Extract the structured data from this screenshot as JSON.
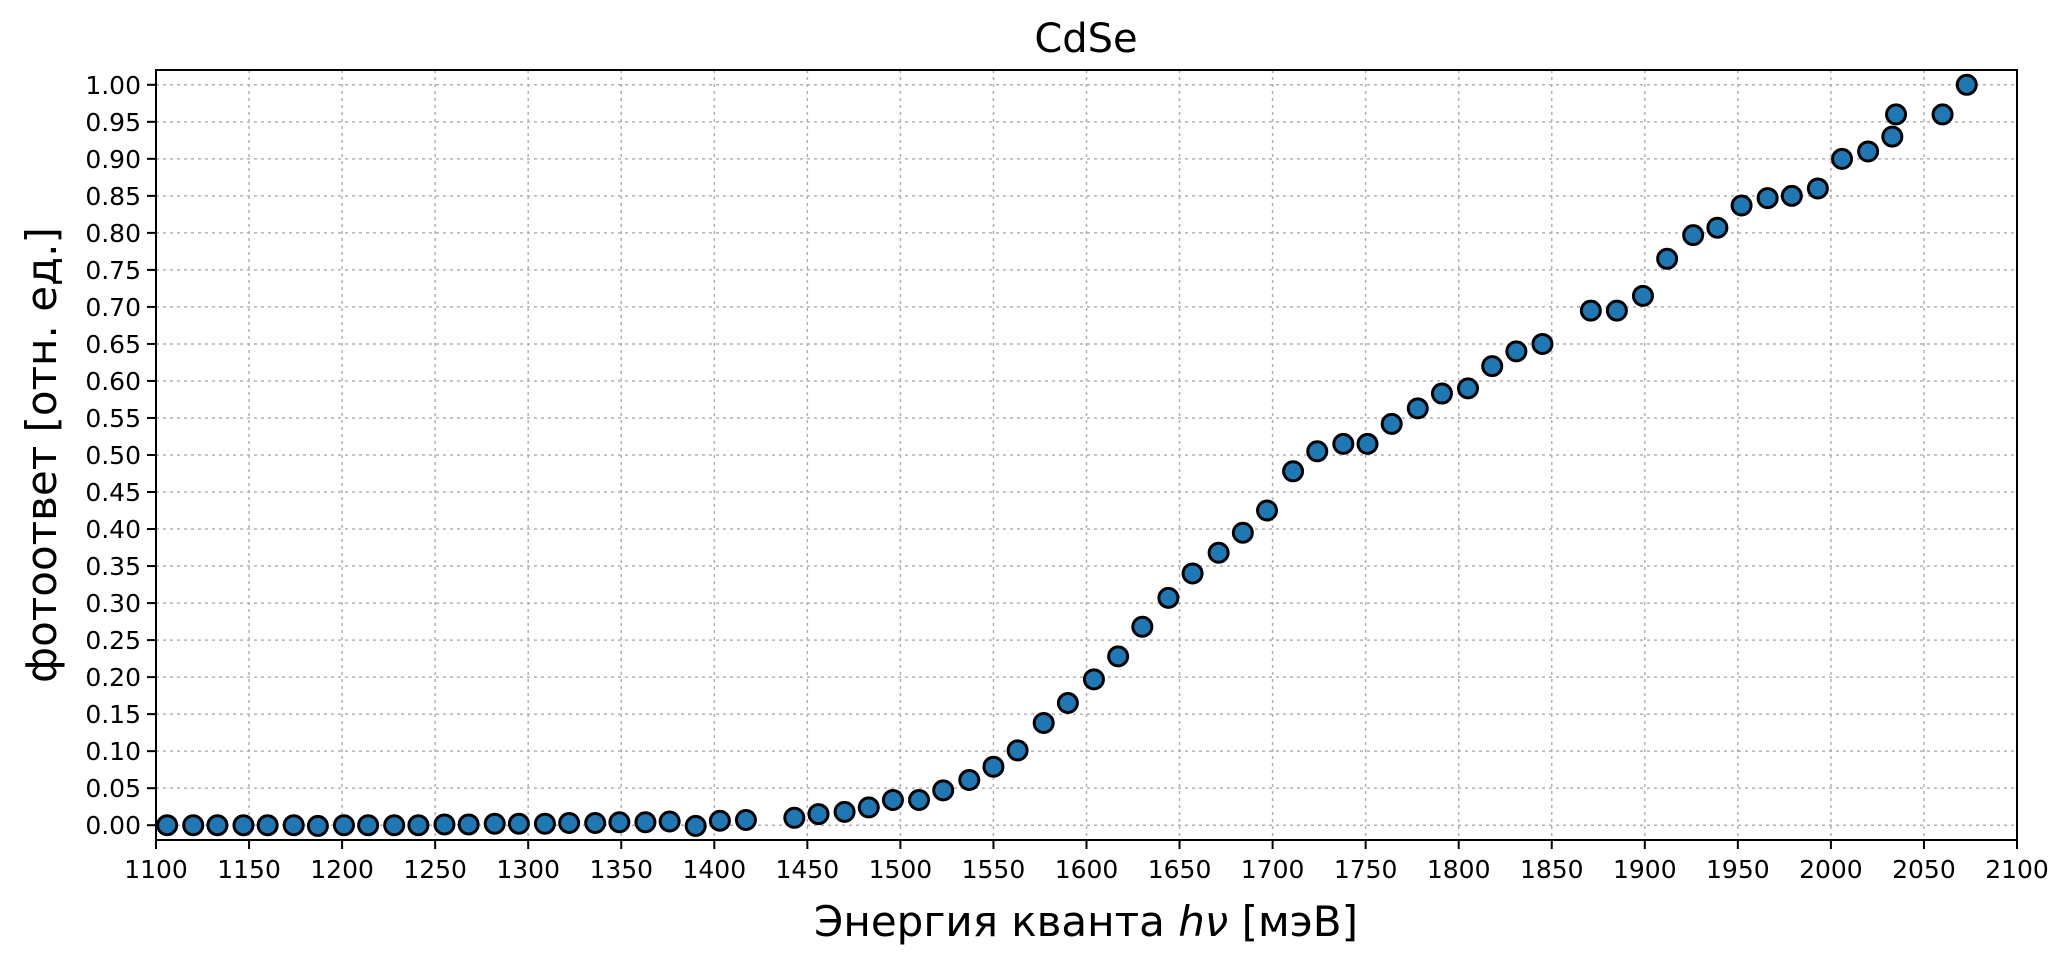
{
  "chart_data": {
    "type": "scatter",
    "title": "CdSe",
    "xlabel_main": "Энергия кванта ",
    "xlabel_italic": "hν",
    "xlabel_suffix": " [мэВ]",
    "ylabel": "фотоответ [отн. ед.]",
    "xlim": [
      1100,
      2100
    ],
    "ylim": [
      -0.02,
      1.02
    ],
    "xticks": [
      1100,
      1150,
      1200,
      1250,
      1300,
      1350,
      1400,
      1450,
      1500,
      1550,
      1600,
      1650,
      1700,
      1750,
      1800,
      1850,
      1900,
      1950,
      2000,
      2050,
      2100
    ],
    "yticks": [
      0.0,
      0.05,
      0.1,
      0.15,
      0.2,
      0.25,
      0.3,
      0.35,
      0.4,
      0.45,
      0.5,
      0.55,
      0.6,
      0.65,
      0.7,
      0.75,
      0.8,
      0.85,
      0.9,
      0.95,
      1.0
    ],
    "grid": true,
    "marker_color": "#1f77b4",
    "marker_edge": "#000000",
    "x": [
      1106,
      1120,
      1133,
      1147,
      1160,
      1174,
      1187,
      1201,
      1214,
      1228,
      1241,
      1255,
      1268,
      1282,
      1295,
      1309,
      1322,
      1336,
      1349,
      1363,
      1376,
      1390,
      1403,
      1417,
      1443,
      1456,
      1470,
      1483,
      1496,
      1510,
      1523,
      1537,
      1550,
      1563,
      1577,
      1590,
      1604,
      1617,
      1630,
      1644,
      1657,
      1671,
      1684,
      1697,
      1711,
      1724,
      1738,
      1751,
      1764,
      1778,
      1791,
      1805,
      1818,
      1831,
      1845,
      1871,
      1885,
      1899,
      1912,
      1926,
      1939,
      1952,
      1966,
      1979,
      1993,
      2006,
      2020,
      2033,
      2035,
      2060,
      2073
    ],
    "y": [
      0.0,
      0.0,
      0.0,
      0.0,
      0.0,
      0.0,
      -0.001,
      0.0,
      0.0,
      0.0,
      0.0,
      0.001,
      0.001,
      0.002,
      0.002,
      0.002,
      0.003,
      0.003,
      0.004,
      0.004,
      0.005,
      -0.001,
      0.006,
      0.007,
      0.01,
      0.015,
      0.018,
      0.024,
      0.034,
      0.034,
      0.047,
      0.061,
      0.079,
      0.101,
      0.138,
      0.165,
      0.197,
      0.228,
      0.268,
      0.307,
      0.34,
      0.368,
      0.395,
      0.425,
      0.478,
      0.505,
      0.515,
      0.515,
      0.542,
      0.563,
      0.583,
      0.59,
      0.62,
      0.64,
      0.65,
      0.695,
      0.695,
      0.715,
      0.765,
      0.797,
      0.807,
      0.837,
      0.847,
      0.85,
      0.86,
      0.9,
      0.91,
      0.93,
      0.96,
      0.96,
      1.0
    ]
  }
}
